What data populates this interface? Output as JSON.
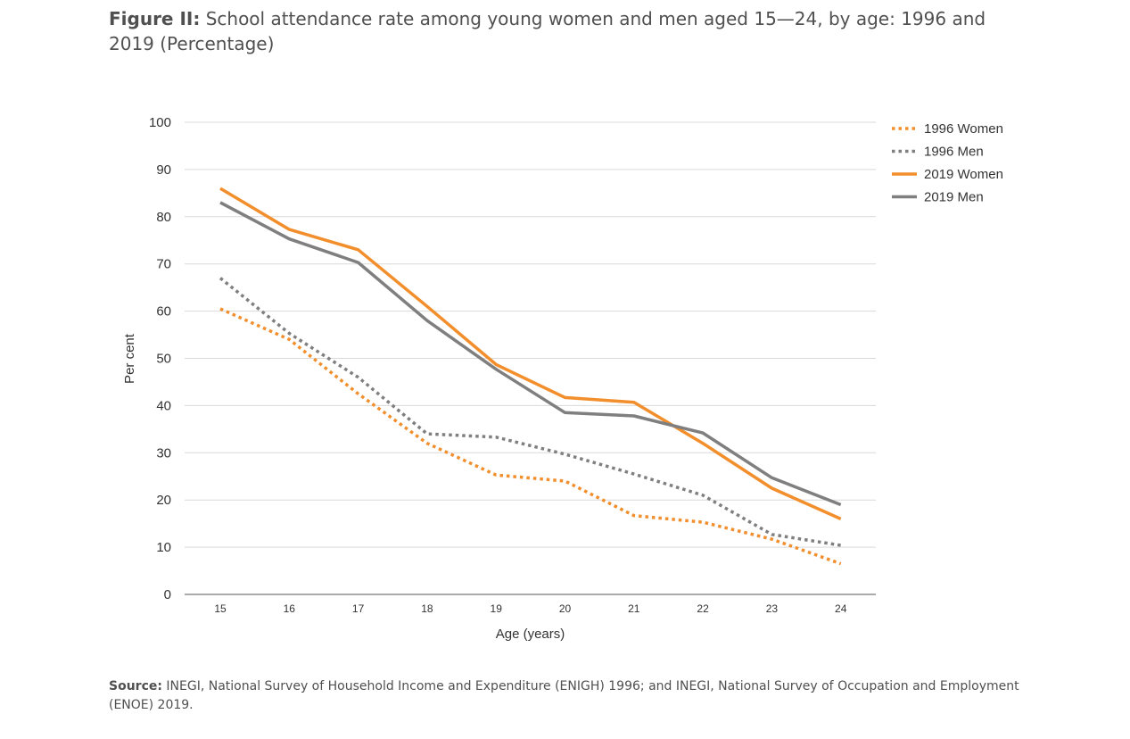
{
  "header": {
    "lead": "Figure II:",
    "title": "School attendance rate among young women and men aged 15—24, by age: 1996 and 2019 (Percentage)"
  },
  "chart_data": {
    "type": "line",
    "x": [
      15,
      16,
      17,
      18,
      19,
      20,
      21,
      22,
      23,
      24
    ],
    "series": [
      {
        "name": "1996 Women",
        "values": [
          60.5,
          54.0,
          42.5,
          32.0,
          25.3,
          24.0,
          16.7,
          15.3,
          11.7,
          6.5
        ],
        "color": "#f28e2b",
        "style": "dotted"
      },
      {
        "name": "1996 Men",
        "values": [
          67.0,
          55.3,
          46.0,
          34.0,
          33.3,
          29.7,
          25.5,
          21.0,
          12.7,
          10.4
        ],
        "color": "#7f7f7f",
        "style": "dotted"
      },
      {
        "name": "2019 Women",
        "values": [
          86.0,
          77.3,
          73.0,
          61.0,
          48.7,
          41.7,
          40.7,
          32.0,
          22.5,
          16.0
        ],
        "color": "#f28e2b",
        "style": "solid"
      },
      {
        "name": "2019 Men",
        "values": [
          83.0,
          75.3,
          70.3,
          58.0,
          47.7,
          38.5,
          37.8,
          34.2,
          24.7,
          19.0
        ],
        "color": "#7f7f7f",
        "style": "solid"
      }
    ],
    "xlabel": "Age (years)",
    "ylabel": "Per cent",
    "ylim": [
      0,
      100
    ],
    "yticks": [
      0,
      10,
      20,
      30,
      40,
      50,
      60,
      70,
      80,
      90,
      100
    ],
    "grid": true,
    "legend_position": "top-right"
  },
  "source": {
    "lead": "Source:",
    "text": "INEGI, National Survey of Household Income and Expenditure (ENIGH) 1996; and INEGI, National Survey of Occupation and Employment (ENOE) 2019."
  }
}
